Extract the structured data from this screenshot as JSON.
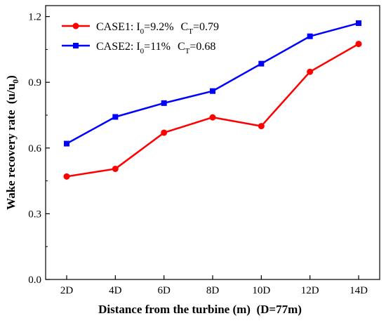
{
  "chart_data": {
    "type": "line",
    "categories": [
      "2D",
      "4D",
      "6D",
      "8D",
      "10D",
      "12D",
      "14D"
    ],
    "series": [
      {
        "name": "CASE1:  I0=9.2%  CT=0.79",
        "name_parts": {
          "prefix": "CASE1:  I",
          "i_sub": "0",
          "i_val": "=9.2%",
          "c": "C",
          "c_sub": "T",
          "c_val": "=0.79"
        },
        "color": "#ff0000",
        "marker": "circle",
        "values": [
          0.47,
          0.505,
          0.67,
          0.74,
          0.7,
          0.948,
          1.075
        ]
      },
      {
        "name": "CASE2:  I0=11%  CT=0.68",
        "name_parts": {
          "prefix": "CASE2:  I",
          "i_sub": "0",
          "i_val": "=11%",
          "c": "C",
          "c_sub": "T",
          "c_val": "=0.68"
        },
        "color": "#0000ff",
        "marker": "square",
        "values": [
          0.62,
          0.742,
          0.805,
          0.86,
          0.985,
          1.11,
          1.17
        ]
      }
    ],
    "xlabel": "Distance from the turbine (m)  (D=77m)",
    "ylabel": {
      "main": "Wake recovery rate  (u/u",
      "sub": "0",
      "close": ")"
    },
    "ylim": [
      0,
      1.25
    ],
    "yticks": [
      "0.0",
      "0.3",
      "0.6",
      "0.9",
      "1.2"
    ],
    "ytick_values": [
      0.0,
      0.3,
      0.6,
      0.9,
      1.2
    ],
    "grid": false,
    "legend_position": "top-left"
  }
}
